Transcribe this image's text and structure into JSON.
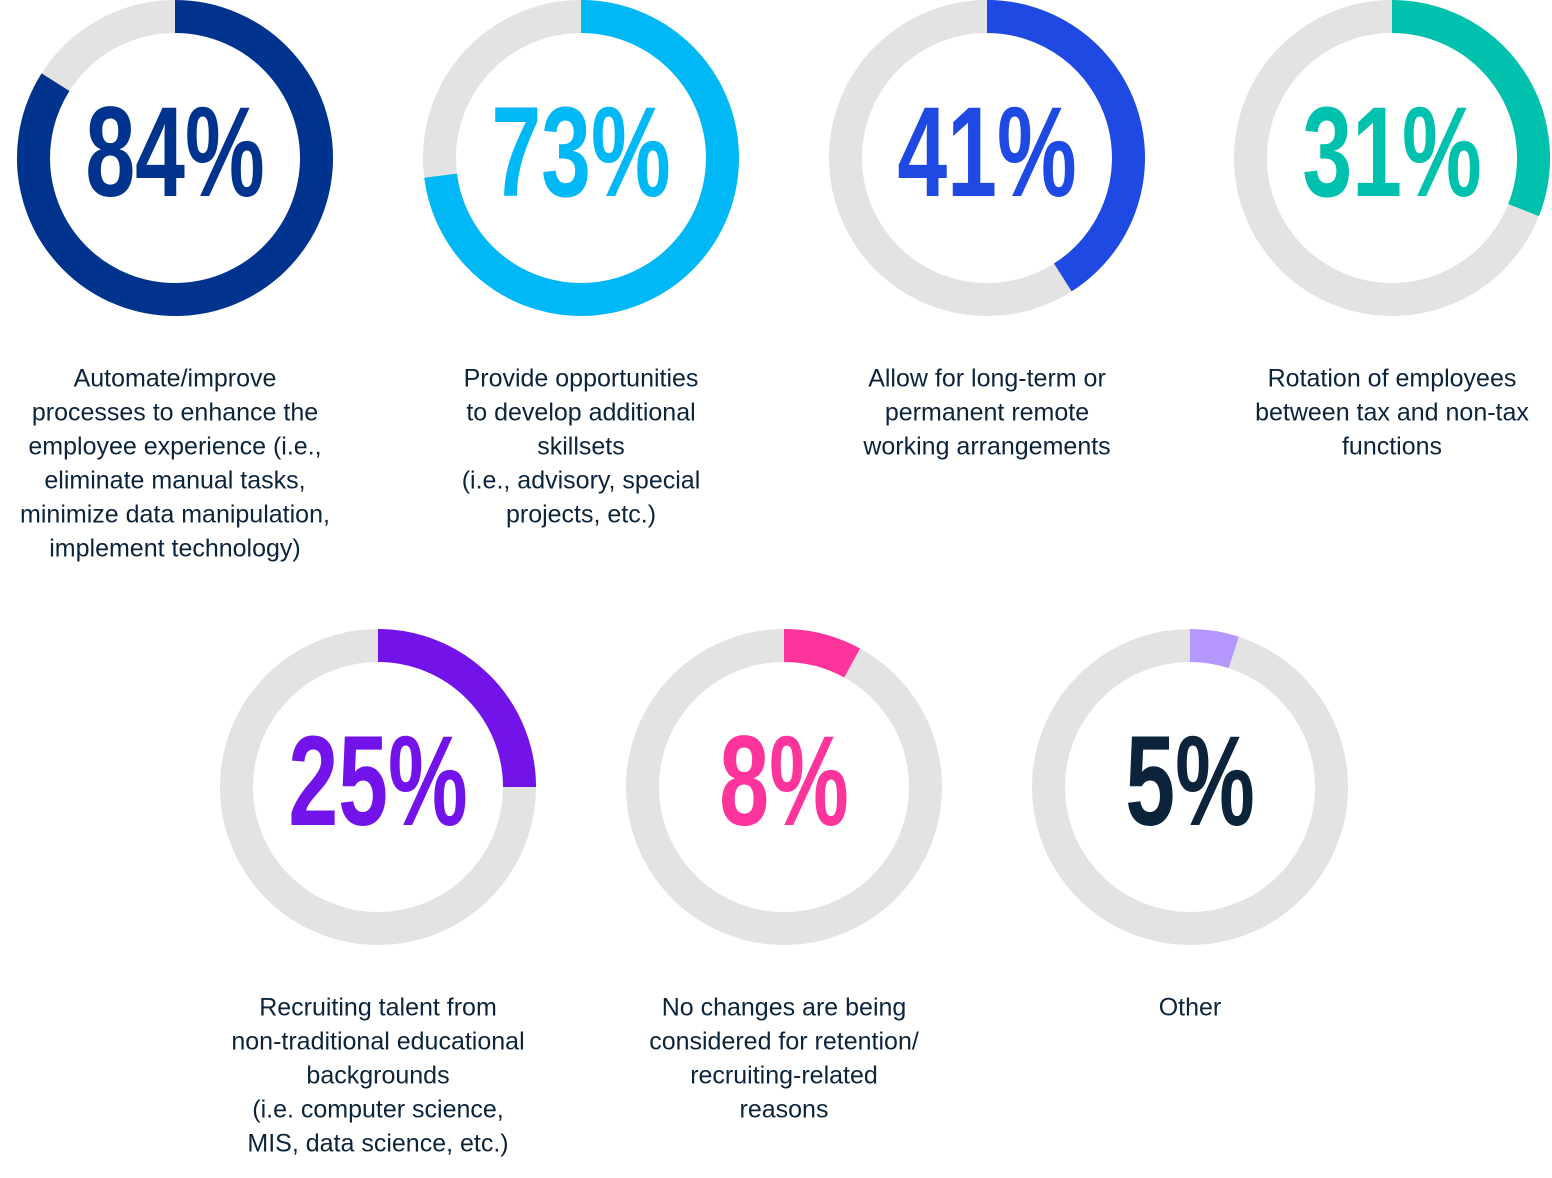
{
  "chart_data": [
    {
      "type": "donut",
      "values": [
        84
      ],
      "value_labels": [
        "84%"
      ],
      "color": "#00338d",
      "text_color": "#00338d",
      "label": [
        "Automate/improve",
        "processes to enhance the",
        "employee experience (i.e.,",
        "eliminate manual tasks,",
        "minimize data manipulation,",
        "implement technology)"
      ]
    },
    {
      "type": "donut",
      "values": [
        73
      ],
      "value_labels": [
        "73%"
      ],
      "color": "#00b8f5",
      "text_color": "#00b8f5",
      "label": [
        "Provide opportunities",
        "to  develop additional",
        "skillsets",
        "(i.e., advisory, special",
        "projects, etc.)"
      ]
    },
    {
      "type": "donut",
      "values": [
        41
      ],
      "value_labels": [
        "41%"
      ],
      "color": "#1e49e2",
      "text_color": "#1e49e2",
      "label": [
        "Allow for long-term or",
        "permanent remote",
        "working arrangements"
      ]
    },
    {
      "type": "donut",
      "values": [
        31
      ],
      "value_labels": [
        "31%"
      ],
      "color": "#00c0ae",
      "text_color": "#00c0ae",
      "label": [
        "Rotation of employees",
        "between tax and non-tax",
        "functions"
      ]
    },
    {
      "type": "donut",
      "values": [
        25
      ],
      "value_labels": [
        "25%"
      ],
      "color": "#7213ea",
      "text_color": "#7213ea",
      "label": [
        "Recruiting talent from",
        "non-traditional educational",
        "backgrounds",
        "(i.e. computer science,",
        "MIS, data science, etc.)"
      ]
    },
    {
      "type": "donut",
      "values": [
        8
      ],
      "value_labels": [
        "8%"
      ],
      "color": "#fd349c",
      "text_color": "#fd349c",
      "label": [
        "No changes are being",
        "considered for retention/",
        "recruiting-related",
        "reasons"
      ]
    },
    {
      "type": "donut",
      "values": [
        5
      ],
      "value_labels": [
        "5%"
      ],
      "color": "#b497ff",
      "text_color": "#0c233c",
      "label": [
        "Other"
      ]
    }
  ]
}
